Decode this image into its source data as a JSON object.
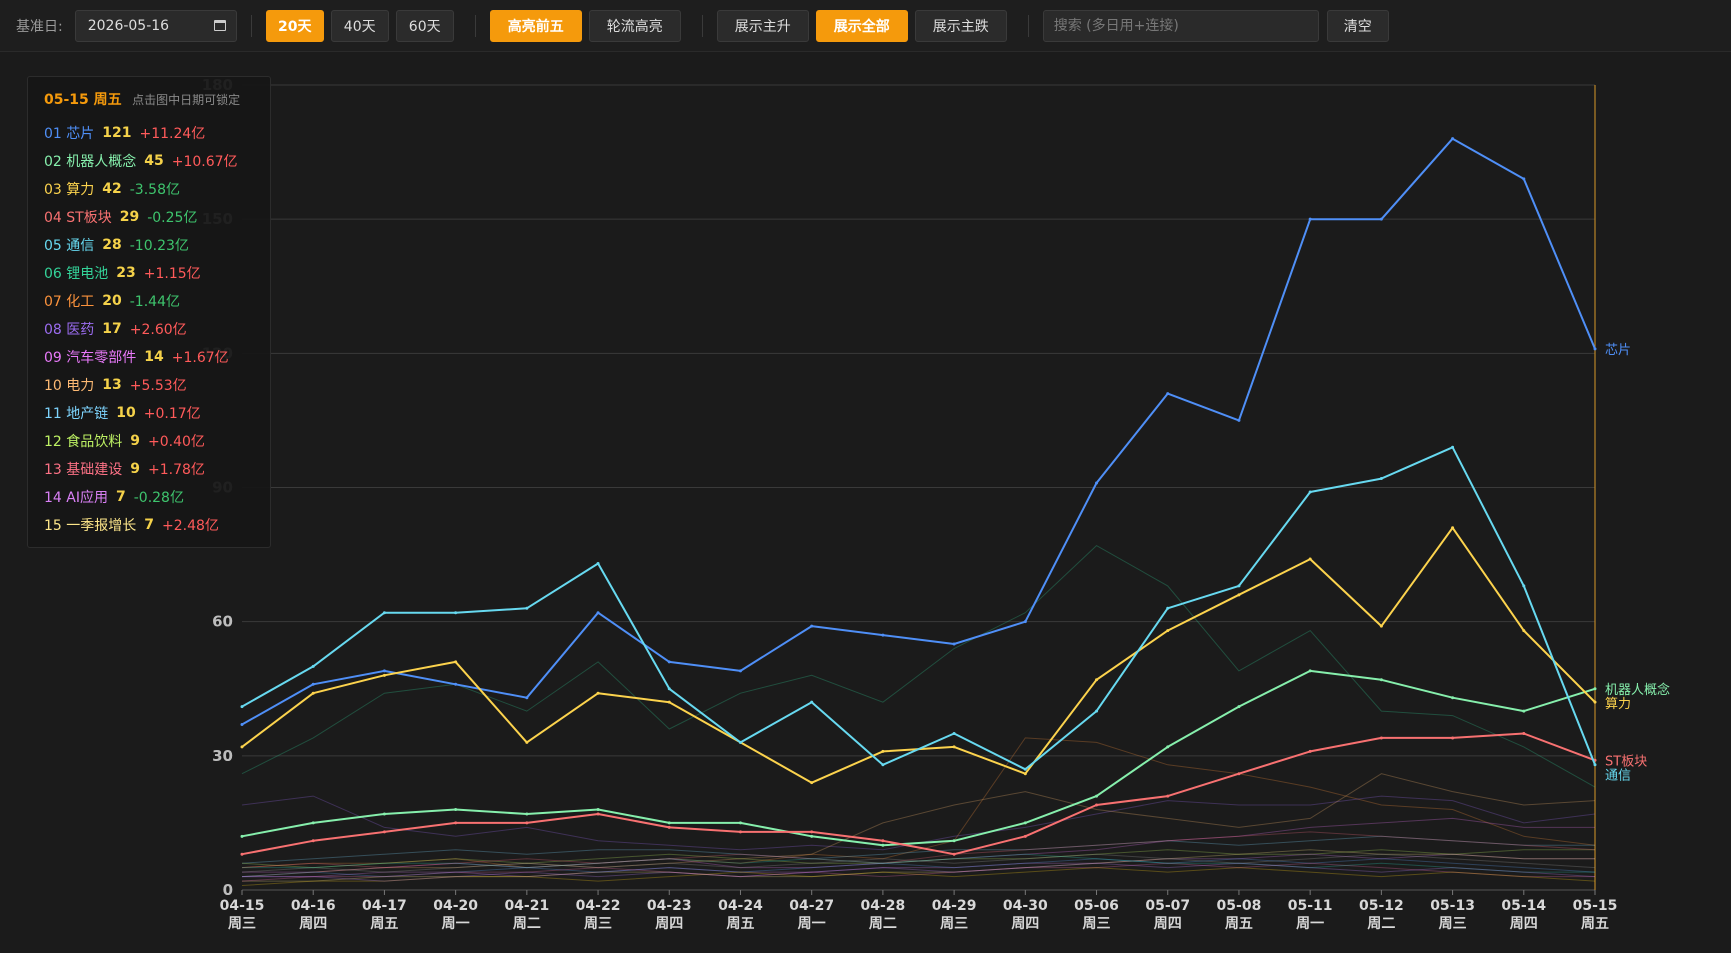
{
  "toolbar": {
    "date_label": "基准日:",
    "date_value": "2026-05-16",
    "range_buttons": [
      {
        "label": "20天",
        "active": true
      },
      {
        "label": "40天",
        "active": false
      },
      {
        "label": "60天",
        "active": false
      }
    ],
    "highlight_buttons": [
      {
        "label": "高亮前五",
        "active": true
      },
      {
        "label": "轮流高亮",
        "active": false
      }
    ],
    "display_buttons": [
      {
        "label": "展示主升",
        "active": false
      },
      {
        "label": "展示全部",
        "active": true
      },
      {
        "label": "展示主跌",
        "active": false
      }
    ],
    "search_placeholder": "搜索 (多日用+连接)",
    "search_value": "",
    "clear_label": "清空"
  },
  "legend": {
    "date": "05-15 周五",
    "hint": "点击图中日期可锁定",
    "rows": [
      {
        "rank": "01",
        "name": "芯片",
        "count": "121",
        "flow": "+11.24亿",
        "color": "#4f8ff7"
      },
      {
        "rank": "02",
        "name": "机器人概念",
        "count": "45",
        "flow": "+10.67亿",
        "color": "#86efac"
      },
      {
        "rank": "03",
        "name": "算力",
        "count": "42",
        "flow": "-3.58亿",
        "color": "#fcd34d"
      },
      {
        "rank": "04",
        "name": "ST板块",
        "count": "29",
        "flow": "-0.25亿",
        "color": "#f87171"
      },
      {
        "rank": "05",
        "name": "通信",
        "count": "28",
        "flow": "-10.23亿",
        "color": "#67d9f0"
      },
      {
        "rank": "06",
        "name": "锂电池",
        "count": "23",
        "flow": "+1.15亿",
        "color": "#34d399"
      },
      {
        "rank": "07",
        "name": "化工",
        "count": "20",
        "flow": "-1.44亿",
        "color": "#fb923c"
      },
      {
        "rank": "08",
        "name": "医药",
        "count": "17",
        "flow": "+2.60亿",
        "color": "#9b6cf0"
      },
      {
        "rank": "09",
        "name": "汽车零部件",
        "count": "14",
        "flow": "+1.67亿",
        "color": "#e879f9"
      },
      {
        "rank": "10",
        "name": "电力",
        "count": "13",
        "flow": "+5.53亿",
        "color": "#fdba74"
      },
      {
        "rank": "11",
        "name": "地产链",
        "count": "10",
        "flow": "+0.17亿",
        "color": "#7dd3fc"
      },
      {
        "rank": "12",
        "name": "食品饮料",
        "count": "9",
        "flow": "+0.40亿",
        "color": "#bef264"
      },
      {
        "rank": "13",
        "name": "基础建设",
        "count": "9",
        "flow": "+1.78亿",
        "color": "#fb7185"
      },
      {
        "rank": "14",
        "name": "AI应用",
        "count": "7",
        "flow": "-0.28亿",
        "color": "#d980f5"
      },
      {
        "rank": "15",
        "name": "一季报增长",
        "count": "7",
        "flow": "+2.48亿",
        "color": "#fde68a"
      }
    ]
  },
  "colors": {
    "accent": "#f59a0c",
    "up": "#ff5a5a",
    "down": "#3ec46d",
    "background": "#1b1b1b",
    "grid": "#3a3a3a"
  },
  "chart_data": {
    "type": "line",
    "ylim": [
      0,
      180
    ],
    "yticks": [
      0,
      30,
      60,
      90,
      120,
      150,
      180
    ],
    "x": [
      "04-15",
      "04-16",
      "04-17",
      "04-20",
      "04-21",
      "04-22",
      "04-23",
      "04-24",
      "04-27",
      "04-28",
      "04-29",
      "04-30",
      "05-06",
      "05-07",
      "05-08",
      "05-11",
      "05-12",
      "05-13",
      "05-14",
      "05-15"
    ],
    "x_weekday": [
      "周三",
      "周四",
      "周五",
      "周一",
      "周二",
      "周三",
      "周四",
      "周五",
      "周一",
      "周二",
      "周三",
      "周四",
      "周三",
      "周四",
      "周五",
      "周一",
      "周二",
      "周三",
      "周四",
      "周五"
    ],
    "series": [
      {
        "name": "芯片",
        "color": "#4f8ff7",
        "values": [
          37,
          46,
          49,
          46,
          43,
          62,
          51,
          49,
          59,
          57,
          55,
          60,
          91,
          111,
          105,
          150,
          150,
          168,
          159,
          121
        ]
      },
      {
        "name": "机器人概念",
        "color": "#86efac",
        "values": [
          12,
          15,
          17,
          18,
          17,
          18,
          15,
          15,
          12,
          10,
          11,
          15,
          21,
          32,
          41,
          49,
          47,
          43,
          40,
          45
        ]
      },
      {
        "name": "算力",
        "color": "#fcd34d",
        "values": [
          32,
          44,
          48,
          51,
          33,
          44,
          42,
          33,
          24,
          31,
          32,
          26,
          47,
          58,
          66,
          74,
          59,
          81,
          58,
          42
        ]
      },
      {
        "name": "ST板块",
        "color": "#f87171",
        "values": [
          8,
          11,
          13,
          15,
          15,
          17,
          14,
          13,
          13,
          11,
          8,
          12,
          19,
          21,
          26,
          31,
          34,
          34,
          35,
          29
        ]
      },
      {
        "name": "通信",
        "color": "#67d9f0",
        "values": [
          41,
          50,
          62,
          62,
          63,
          73,
          45,
          33,
          42,
          28,
          35,
          27,
          40,
          63,
          68,
          89,
          92,
          99,
          68,
          28
        ]
      }
    ],
    "end_labels": [
      "芯片",
      "机器人概念",
      "算力",
      "ST板块",
      "通信"
    ],
    "background_series": [
      {
        "color": "#34d399",
        "values": [
          26,
          34,
          44,
          46,
          40,
          51,
          36,
          44,
          48,
          42,
          54,
          62,
          77,
          68,
          49,
          58,
          40,
          39,
          32,
          23
        ]
      },
      {
        "color": "#fb923c",
        "values": [
          5,
          6,
          6,
          7,
          5,
          6,
          7,
          6,
          8,
          7,
          11,
          34,
          33,
          28,
          26,
          23,
          19,
          18,
          12,
          10
        ]
      },
      {
        "color": "#9b6cf0",
        "values": [
          19,
          21,
          14,
          12,
          14,
          11,
          10,
          9,
          10,
          9,
          12,
          14,
          17,
          20,
          19,
          19,
          21,
          20,
          15,
          17
        ]
      },
      {
        "color": "#e879f9",
        "values": [
          4,
          4,
          5,
          6,
          5,
          6,
          7,
          5,
          5,
          6,
          7,
          8,
          9,
          11,
          12,
          14,
          15,
          16,
          14,
          14
        ]
      },
      {
        "color": "#fdba74",
        "values": [
          3,
          4,
          5,
          5,
          6,
          5,
          6,
          7,
          8,
          15,
          19,
          22,
          18,
          16,
          14,
          16,
          26,
          22,
          19,
          20
        ]
      },
      {
        "color": "#7dd3fc",
        "values": [
          6,
          7,
          8,
          9,
          8,
          9,
          9,
          8,
          7,
          8,
          9,
          9,
          10,
          11,
          10,
          11,
          12,
          11,
          10,
          10
        ]
      },
      {
        "color": "#bef264",
        "values": [
          6,
          5,
          6,
          7,
          6,
          7,
          8,
          7,
          6,
          6,
          7,
          7,
          8,
          9,
          8,
          8,
          9,
          8,
          9,
          9
        ]
      },
      {
        "color": "#fb7185",
        "values": [
          5,
          6,
          5,
          6,
          7,
          6,
          7,
          8,
          7,
          6,
          8,
          9,
          10,
          11,
          12,
          13,
          12,
          11,
          10,
          9
        ]
      },
      {
        "color": "#d980f5",
        "values": [
          3,
          3,
          4,
          4,
          3,
          4,
          5,
          4,
          4,
          5,
          5,
          6,
          6,
          7,
          7,
          8,
          7,
          8,
          7,
          7
        ]
      },
      {
        "color": "#fde68a",
        "values": [
          2,
          2,
          3,
          3,
          3,
          4,
          4,
          3,
          3,
          4,
          4,
          5,
          6,
          7,
          8,
          9,
          8,
          8,
          7,
          7
        ]
      },
      {
        "color": "#a3a3a3",
        "values": [
          4,
          5,
          4,
          5,
          6,
          5,
          6,
          5,
          6,
          7,
          6,
          7,
          8,
          7,
          6,
          7,
          8,
          7,
          6,
          5
        ]
      },
      {
        "color": "#60a5fa",
        "values": [
          3,
          4,
          3,
          4,
          5,
          4,
          5,
          4,
          5,
          6,
          5,
          6,
          7,
          6,
          7,
          6,
          7,
          6,
          5,
          4
        ]
      },
      {
        "color": "#f472b6",
        "values": [
          2,
          3,
          3,
          4,
          4,
          5,
          4,
          3,
          4,
          3,
          4,
          5,
          5,
          6,
          5,
          6,
          5,
          4,
          3,
          3
        ]
      },
      {
        "color": "#2dd4bf",
        "values": [
          5,
          5,
          6,
          6,
          5,
          6,
          7,
          6,
          7,
          6,
          7,
          8,
          7,
          6,
          6,
          5,
          6,
          5,
          4,
          4
        ]
      },
      {
        "color": "#facc15",
        "values": [
          1,
          2,
          2,
          3,
          3,
          2,
          3,
          4,
          3,
          4,
          3,
          4,
          5,
          4,
          5,
          4,
          3,
          4,
          3,
          2
        ]
      },
      {
        "color": "#c084fc",
        "values": [
          3,
          3,
          2,
          3,
          4,
          3,
          4,
          3,
          4,
          5,
          4,
          5,
          6,
          5,
          6,
          5,
          4,
          5,
          4,
          3
        ]
      }
    ]
  }
}
